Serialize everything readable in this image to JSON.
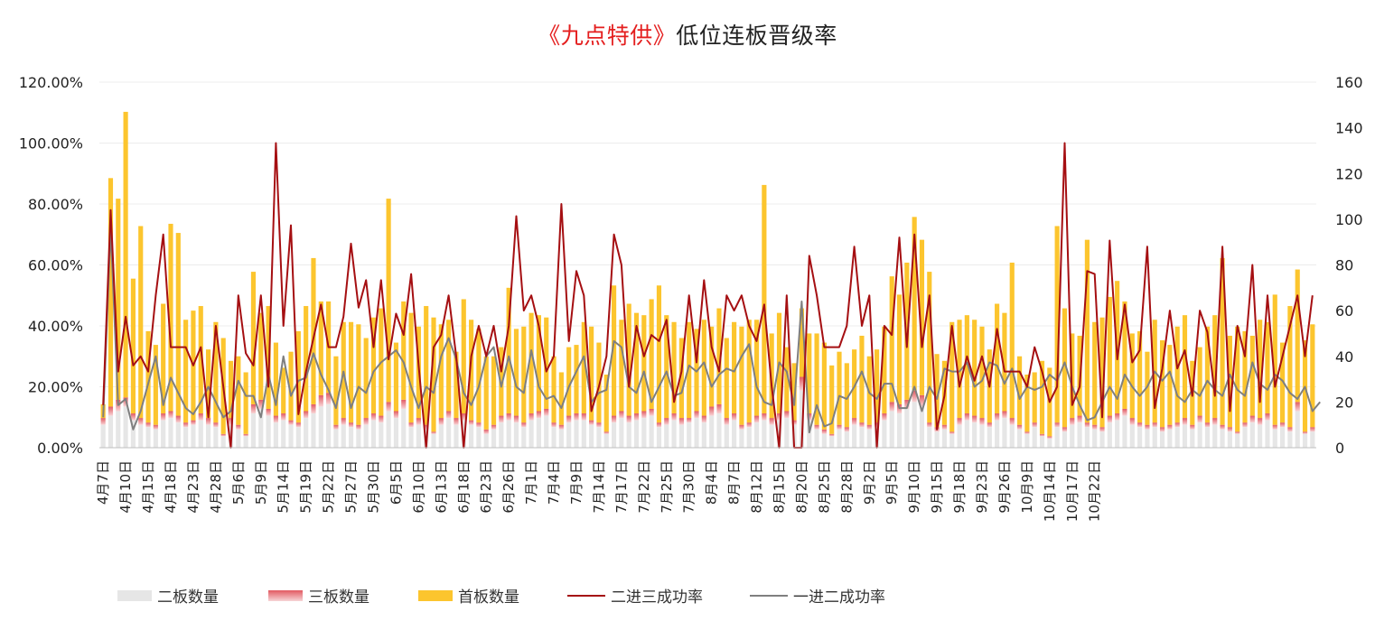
{
  "title": {
    "highlight": "《九点特供》",
    "rest": "低位连板晋级率"
  },
  "colors": {
    "second_board": "#e6e6e6",
    "third_board": "#e6868a",
    "first_board": "#fcc52e",
    "rate_2to3": "#a50f12",
    "rate_1to2": "#7f7f7f"
  },
  "chart_data": {
    "type": "bar",
    "stacked_bars": true,
    "y_left": {
      "min": 0,
      "max": 1.2,
      "ticks": [
        "0.00%",
        "20.00%",
        "40.00%",
        "60.00%",
        "80.00%",
        "100.00%",
        "120.00%"
      ]
    },
    "y_right": {
      "min": 0,
      "max": 160,
      "ticks": [
        "0",
        "20",
        "40",
        "60",
        "80",
        "100",
        "120",
        "140",
        "160"
      ]
    },
    "x_tick_labels": [
      "4月7日",
      "4月10日",
      "4月15日",
      "4月18日",
      "4月23日",
      "4月28日",
      "5月6日",
      "5月9日",
      "5月14日",
      "5月19日",
      "5月22日",
      "5月27日",
      "5月30日",
      "6月5日",
      "6月10日",
      "6月13日",
      "6月18日",
      "6月23日",
      "6月26日",
      "7月1日",
      "7月4日",
      "7月9日",
      "7月14日",
      "7月17日",
      "7月22日",
      "7月25日",
      "7月30日",
      "8月4日",
      "8月7日",
      "8月12日",
      "8月15日",
      "8月20日",
      "8月25日",
      "8月28日",
      "9月2日",
      "9月5日",
      "9月10日",
      "9月15日",
      "9月18日",
      "9月23日",
      "9月26日",
      "10月9日",
      "10月14日",
      "10月17日",
      "10月22日"
    ],
    "x_tick_every": 3,
    "grid": "horizontal",
    "legend_position": "bottom",
    "series": [
      {
        "name": "二板数量",
        "kind": "bar",
        "axis": "right",
        "values": [
          10,
          14,
          16,
          18,
          12,
          10,
          9,
          8,
          12,
          13,
          11,
          9,
          10,
          12,
          10,
          9,
          5,
          10,
          8,
          5,
          15,
          17,
          14,
          11,
          12,
          10,
          9,
          13,
          15,
          18,
          19,
          8,
          10,
          9,
          8,
          10,
          12,
          11,
          16,
          13,
          17,
          9,
          10,
          8,
          6,
          10,
          13,
          10,
          12,
          10,
          9,
          6,
          8,
          11,
          12,
          11,
          9,
          12,
          13,
          14,
          9,
          8,
          11,
          12,
          12,
          10,
          9,
          6,
          11,
          13,
          11,
          12,
          13,
          14,
          9,
          10,
          12,
          10,
          11,
          13,
          11,
          14,
          15,
          10,
          12,
          8,
          9,
          11,
          12,
          10,
          12,
          13,
          10,
          25,
          12,
          8,
          6,
          5,
          8,
          7,
          10,
          9,
          8,
          9,
          12,
          16,
          15,
          17,
          20,
          18,
          9,
          7,
          8,
          6,
          10,
          12,
          11,
          10,
          9,
          12,
          13,
          10,
          8,
          6,
          9,
          5,
          4,
          9,
          7,
          10,
          11,
          9,
          8,
          7,
          11,
          12,
          14,
          10,
          9,
          8,
          9,
          7,
          8,
          9,
          10,
          8,
          11,
          9,
          10,
          8,
          7,
          6,
          9,
          11,
          10,
          12,
          8,
          9,
          7,
          16,
          6,
          7
        ]
      },
      {
        "name": "三板数量",
        "kind": "bar",
        "axis": "right",
        "values": [
          3,
          4,
          5,
          4,
          3,
          3,
          2,
          2,
          3,
          3,
          3,
          2,
          2,
          3,
          3,
          2,
          1,
          3,
          2,
          1,
          4,
          4,
          3,
          3,
          3,
          2,
          2,
          3,
          4,
          5,
          5,
          2,
          3,
          2,
          2,
          3,
          3,
          3,
          4,
          3,
          4,
          2,
          3,
          2,
          1,
          3,
          3,
          3,
          3,
          2,
          2,
          2,
          2,
          3,
          3,
          3,
          2,
          3,
          3,
          3,
          2,
          2,
          3,
          3,
          3,
          2,
          2,
          1,
          3,
          3,
          3,
          3,
          3,
          3,
          2,
          3,
          3,
          3,
          2,
          3,
          3,
          4,
          4,
          3,
          3,
          2,
          2,
          3,
          3,
          3,
          3,
          3,
          2,
          6,
          3,
          2,
          2,
          1,
          2,
          2,
          3,
          2,
          2,
          2,
          3,
          4,
          4,
          4,
          5,
          5,
          2,
          2,
          2,
          1,
          3,
          3,
          3,
          3,
          2,
          3,
          3,
          3,
          2,
          1,
          2,
          1,
          1,
          2,
          2,
          3,
          3,
          2,
          2,
          2,
          3,
          3,
          3,
          3,
          2,
          2,
          2,
          2,
          2,
          2,
          3,
          2,
          3,
          2,
          3,
          2,
          2,
          1,
          2,
          3,
          3,
          3,
          2,
          2,
          2,
          4,
          1,
          2
        ]
      },
      {
        "name": "首板数量",
        "kind": "bar",
        "axis": "right",
        "values": [
          6,
          100,
          88,
          125,
          59,
          84,
          40,
          35,
          48,
          82,
          80,
          45,
          48,
          47,
          30,
          44,
          42,
          25,
          30,
          27,
          58,
          38,
          45,
          32,
          20,
          30,
          40,
          46,
          64,
          41,
          40,
          30,
          42,
          44,
          44,
          35,
          42,
          47,
          89,
          30,
          43,
          48,
          40,
          52,
          50,
          41,
          40,
          29,
          50,
          44,
          41,
          32,
          30,
          30,
          55,
          38,
          42,
          44,
          42,
          40,
          29,
          23,
          30,
          30,
          40,
          41,
          35,
          25,
          57,
          40,
          49,
          44,
          42,
          48,
          60,
          45,
          40,
          35,
          42,
          36,
          42,
          35,
          42,
          35,
          40,
          43,
          45,
          42,
          100,
          37,
          44,
          28,
          25,
          30,
          35,
          40,
          38,
          30,
          32,
          28,
          30,
          38,
          30,
          32,
          38,
          55,
          48,
          60,
          76,
          68,
          66,
          32,
          28,
          48,
          43,
          43,
          42,
          40,
          32,
          48,
          43,
          68,
          30,
          25,
          22,
          32,
          30,
          86,
          52,
          37,
          35,
          80,
          45,
          48,
          52,
          58,
          47,
          37,
          40,
          32,
          45,
          38,
          35,
          42,
          45,
          28,
          30,
          42,
          45,
          73,
          40,
          46,
          40,
          35,
          43,
          40,
          57,
          35,
          53,
          58,
          40,
          45
        ]
      },
      {
        "name": "二进三成功率",
        "kind": "line",
        "axis": "left",
        "values": [
          0.14,
          0.78,
          0.25,
          0.43,
          0.27,
          0.3,
          0.25,
          0.5,
          0.7,
          0.33,
          0.33,
          0.33,
          0.27,
          0.33,
          0.1,
          0.4,
          0.2,
          0.0,
          0.5,
          0.31,
          0.27,
          0.5,
          0.2,
          1.0,
          0.4,
          0.73,
          0.11,
          0.25,
          0.36,
          0.47,
          0.33,
          0.33,
          0.43,
          0.67,
          0.46,
          0.55,
          0.33,
          0.55,
          0.29,
          0.44,
          0.37,
          0.57,
          0.27,
          0.0,
          0.33,
          0.37,
          0.5,
          0.3,
          0.0,
          0.3,
          0.4,
          0.3,
          0.4,
          0.25,
          0.4,
          0.76,
          0.45,
          0.5,
          0.4,
          0.25,
          0.3,
          0.8,
          0.35,
          0.58,
          0.5,
          0.12,
          0.2,
          0.3,
          0.7,
          0.6,
          0.2,
          0.4,
          0.3,
          0.37,
          0.35,
          0.42,
          0.15,
          0.25,
          0.5,
          0.28,
          0.55,
          0.33,
          0.25,
          0.5,
          0.45,
          0.5,
          0.4,
          0.35,
          0.47,
          0.2,
          0.0,
          0.5,
          0.0,
          0.0,
          0.63,
          0.5,
          0.33,
          0.33,
          0.33,
          0.4,
          0.66,
          0.4,
          0.5,
          0.0,
          0.4,
          0.37,
          0.69,
          0.33,
          0.7,
          0.33,
          0.5,
          0.06,
          0.17,
          0.4,
          0.2,
          0.3,
          0.22,
          0.3,
          0.2,
          0.39,
          0.25,
          0.25,
          0.25,
          0.2,
          0.33,
          0.25,
          0.15,
          0.2,
          1.0,
          0.14,
          0.2,
          0.58,
          0.57,
          0.1,
          0.68,
          0.29,
          0.47,
          0.28,
          0.32,
          0.66,
          0.13,
          0.26,
          0.45,
          0.26,
          0.32,
          0.17,
          0.45,
          0.38,
          0.17,
          0.66,
          0.12,
          0.4,
          0.3,
          0.6,
          0.15,
          0.5,
          0.2,
          0.3,
          0.4,
          0.5,
          0.3,
          0.5
        ]
      },
      {
        "name": "一进二成功率",
        "kind": "line",
        "axis": "left",
        "values": [
          0.1,
          0.72,
          0.14,
          0.16,
          0.06,
          0.12,
          0.21,
          0.3,
          0.14,
          0.23,
          0.18,
          0.13,
          0.11,
          0.15,
          0.2,
          0.15,
          0.1,
          0.12,
          0.22,
          0.17,
          0.17,
          0.1,
          0.24,
          0.14,
          0.3,
          0.17,
          0.22,
          0.23,
          0.31,
          0.24,
          0.19,
          0.13,
          0.25,
          0.13,
          0.2,
          0.18,
          0.25,
          0.28,
          0.3,
          0.32,
          0.28,
          0.2,
          0.13,
          0.2,
          0.18,
          0.3,
          0.36,
          0.29,
          0.18,
          0.14,
          0.2,
          0.3,
          0.33,
          0.2,
          0.3,
          0.2,
          0.18,
          0.32,
          0.2,
          0.16,
          0.17,
          0.13,
          0.2,
          0.25,
          0.3,
          0.15,
          0.18,
          0.19,
          0.35,
          0.33,
          0.2,
          0.18,
          0.25,
          0.15,
          0.2,
          0.25,
          0.17,
          0.18,
          0.27,
          0.25,
          0.28,
          0.2,
          0.24,
          0.26,
          0.25,
          0.3,
          0.34,
          0.2,
          0.15,
          0.14,
          0.28,
          0.25,
          0.14,
          0.48,
          0.05,
          0.14,
          0.07,
          0.08,
          0.17,
          0.16,
          0.2,
          0.25,
          0.18,
          0.16,
          0.21,
          0.21,
          0.13,
          0.13,
          0.2,
          0.12,
          0.2,
          0.16,
          0.26,
          0.25,
          0.25,
          0.28,
          0.2,
          0.22,
          0.28,
          0.27,
          0.21,
          0.26,
          0.16,
          0.2,
          0.19,
          0.2,
          0.24,
          0.22,
          0.28,
          0.2,
          0.14,
          0.09,
          0.1,
          0.15,
          0.2,
          0.16,
          0.24,
          0.2,
          0.17,
          0.2,
          0.25,
          0.22,
          0.25,
          0.17,
          0.15,
          0.19,
          0.17,
          0.22,
          0.19,
          0.17,
          0.24,
          0.19,
          0.17,
          0.28,
          0.21,
          0.19,
          0.24,
          0.22,
          0.18,
          0.16,
          0.2,
          0.12,
          0.15
        ]
      }
    ]
  }
}
